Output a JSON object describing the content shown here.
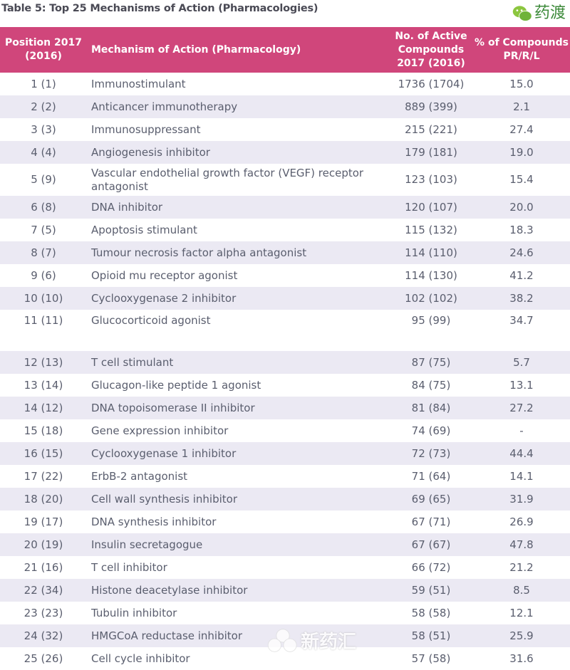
{
  "title": "Table 5: Top 25 Mechanisms of Action (Pharmacologies)",
  "columns": [
    "Position 2017 (2016)",
    "Mechanism of Action (Pharmacology)",
    "No. of Active Compounds 2017 (2016)",
    "% of Compounds PR/R/L"
  ],
  "rows": [
    {
      "pos": "1 (1)",
      "moa": "Immunostimulant",
      "count": "1736 (1704)",
      "pct": "15.0"
    },
    {
      "pos": "2 (2)",
      "moa": "Anticancer immunotherapy",
      "count": "889 (399)",
      "pct": "2.1"
    },
    {
      "pos": "3 (3)",
      "moa": "Immunosuppressant",
      "count": "215 (221)",
      "pct": "27.4"
    },
    {
      "pos": "4 (4)",
      "moa": "Angiogenesis inhibitor",
      "count": "179 (181)",
      "pct": "19.0"
    },
    {
      "pos": "5 (9)",
      "moa": "Vascular endothelial growth factor (VEGF) receptor antagonist",
      "count": "123 (103)",
      "pct": "15.4"
    },
    {
      "pos": "6 (8)",
      "moa": "DNA inhibitor",
      "count": "120 (107)",
      "pct": "20.0"
    },
    {
      "pos": "7 (5)",
      "moa": "Apoptosis stimulant",
      "count": "115 (132)",
      "pct": "18.3"
    },
    {
      "pos": "8 (7)",
      "moa": "Tumour necrosis factor alpha antagonist",
      "count": "114 (110)",
      "pct": "24.6"
    },
    {
      "pos": "9 (6)",
      "moa": "Opioid mu receptor agonist",
      "count": "114 (130)",
      "pct": "41.2"
    },
    {
      "pos": "10 (10)",
      "moa": "Cyclooxygenase 2 inhibitor",
      "count": "102 (102)",
      "pct": "38.2"
    },
    {
      "pos": "11 (11)",
      "moa": "Glucocorticoid agonist",
      "count": "95 (99)",
      "pct": "34.7"
    },
    {
      "pos": "12 (13)",
      "moa": "T cell stimulant",
      "count": "87 (75)",
      "pct": "5.7"
    },
    {
      "pos": "13 (14)",
      "moa": "Glucagon-like peptide 1 agonist",
      "count": "84 (75)",
      "pct": "13.1"
    },
    {
      "pos": "14 (12)",
      "moa": "DNA topoisomerase II inhibitor",
      "count": "81 (84)",
      "pct": "27.2"
    },
    {
      "pos": "15 (18)",
      "moa": "Gene expression inhibitor",
      "count": "74 (69)",
      "pct": "-"
    },
    {
      "pos": "16 (15)",
      "moa": "Cyclooxygenase 1 inhibitor",
      "count": "72 (73)",
      "pct": "44.4"
    },
    {
      "pos": "17 (22)",
      "moa": "ErbB-2 antagonist",
      "count": "71 (64)",
      "pct": "14.1"
    },
    {
      "pos": "18 (20)",
      "moa": "Cell wall synthesis inhibitor",
      "count": "69 (65)",
      "pct": "31.9"
    },
    {
      "pos": "19 (17)",
      "moa": "DNA synthesis inhibitor",
      "count": "67 (71)",
      "pct": "26.9"
    },
    {
      "pos": "20 (19)",
      "moa": "Insulin secretagogue",
      "count": "67 (67)",
      "pct": "47.8"
    },
    {
      "pos": "21 (16)",
      "moa": "T cell inhibitor",
      "count": "66 (72)",
      "pct": "21.2"
    },
    {
      "pos": "22 (34)",
      "moa": "Histone deacetylase inhibitor",
      "count": "59 (51)",
      "pct": "8.5"
    },
    {
      "pos": "23 (23)",
      "moa": "Tubulin inhibitor",
      "count": "58 (58)",
      "pct": "12.1"
    },
    {
      "pos": "24 (32)",
      "moa": "HMGCoA reductase inhibitor",
      "count": "58 (51)",
      "pct": "25.9"
    },
    {
      "pos": "25 (26)",
      "moa": "Cell cycle inhibitor",
      "count": "57 (58)",
      "pct": "31.6"
    }
  ],
  "watermarks": {
    "top": "药渡",
    "bottom": "新药汇"
  },
  "colors": {
    "header": "#d0467b",
    "shade": "#ebe9f3",
    "text": "#5a5e6e"
  }
}
